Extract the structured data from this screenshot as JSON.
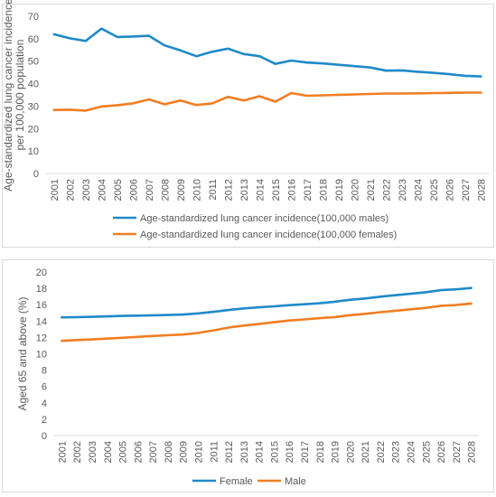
{
  "chart_data": [
    {
      "type": "line",
      "title": "",
      "xlabel": "",
      "ylabel": "Age-standardized lung cancer incidence per 100,000 population",
      "ylabel_lines": [
        "Age-standardized lung cancer incidence",
        "per 100,000 population"
      ],
      "ylim": [
        0,
        70
      ],
      "yticks": [
        0,
        10,
        20,
        30,
        40,
        50,
        60,
        70
      ],
      "grid": false,
      "legend_position": "bottom",
      "categories": [
        "2001",
        "2002",
        "2003",
        "2004",
        "2005",
        "2006",
        "2007",
        "2008",
        "2009",
        "2010",
        "2011",
        "2012",
        "2013",
        "2014",
        "2015",
        "2016",
        "2017",
        "2018",
        "2019",
        "2020",
        "2021",
        "2022",
        "2023",
        "2024",
        "2025",
        "2026",
        "2027",
        "2028"
      ],
      "series": [
        {
          "name": "Age-standardized lung cancer incidence(100,000 males)",
          "color": "#1f8ac9",
          "values": [
            62.0,
            60.2,
            59.0,
            64.5,
            60.8,
            61.0,
            61.3,
            57.0,
            54.8,
            52.2,
            54.2,
            55.6,
            53.2,
            52.2,
            48.8,
            50.3,
            49.4,
            49.0,
            48.4,
            47.8,
            47.2,
            45.8,
            45.9,
            45.3,
            44.8,
            44.2,
            43.5,
            43.2
          ]
        },
        {
          "name": "Age-standardized lung cancer incidence(100,000 females)",
          "color": "#f27d21",
          "values": [
            28.3,
            28.4,
            28.0,
            29.8,
            30.4,
            31.2,
            33.0,
            30.8,
            32.5,
            30.5,
            31.2,
            34.1,
            32.5,
            34.4,
            32.0,
            35.8,
            34.6,
            34.8,
            35.0,
            35.2,
            35.4,
            35.6,
            35.6,
            35.7,
            35.8,
            35.9,
            36.0,
            36.0
          ]
        }
      ]
    },
    {
      "type": "line",
      "title": "",
      "xlabel": "",
      "ylabel": "Aged 65 and above (%)",
      "ylim": [
        0,
        20
      ],
      "yticks": [
        0,
        2,
        4,
        6,
        8,
        10,
        12,
        14,
        16,
        18,
        20
      ],
      "grid": false,
      "legend_position": "bottom",
      "categories": [
        "2001",
        "2002",
        "2003",
        "2004",
        "2005",
        "2006",
        "2007",
        "2008",
        "2009",
        "2010",
        "2011",
        "2012",
        "2013",
        "2014",
        "2015",
        "2016",
        "2017",
        "2018",
        "2019",
        "2020",
        "2021",
        "2022",
        "2023",
        "2024",
        "2025",
        "2026",
        "2027",
        "2028"
      ],
      "series": [
        {
          "name": "Female",
          "color": "#1f8ac9",
          "values": [
            14.45,
            14.48,
            14.52,
            14.58,
            14.63,
            14.66,
            14.71,
            14.74,
            14.8,
            14.94,
            15.13,
            15.35,
            15.55,
            15.68,
            15.8,
            15.94,
            16.06,
            16.18,
            16.37,
            16.6,
            16.76,
            16.98,
            17.16,
            17.34,
            17.53,
            17.78,
            17.88,
            18.04
          ]
        },
        {
          "name": "Male",
          "color": "#f27d21",
          "values": [
            11.58,
            11.68,
            11.76,
            11.86,
            11.96,
            12.07,
            12.18,
            12.27,
            12.35,
            12.55,
            12.86,
            13.2,
            13.45,
            13.64,
            13.86,
            14.07,
            14.2,
            14.35,
            14.49,
            14.72,
            14.88,
            15.08,
            15.26,
            15.44,
            15.61,
            15.87,
            15.97,
            16.14
          ]
        }
      ]
    }
  ]
}
